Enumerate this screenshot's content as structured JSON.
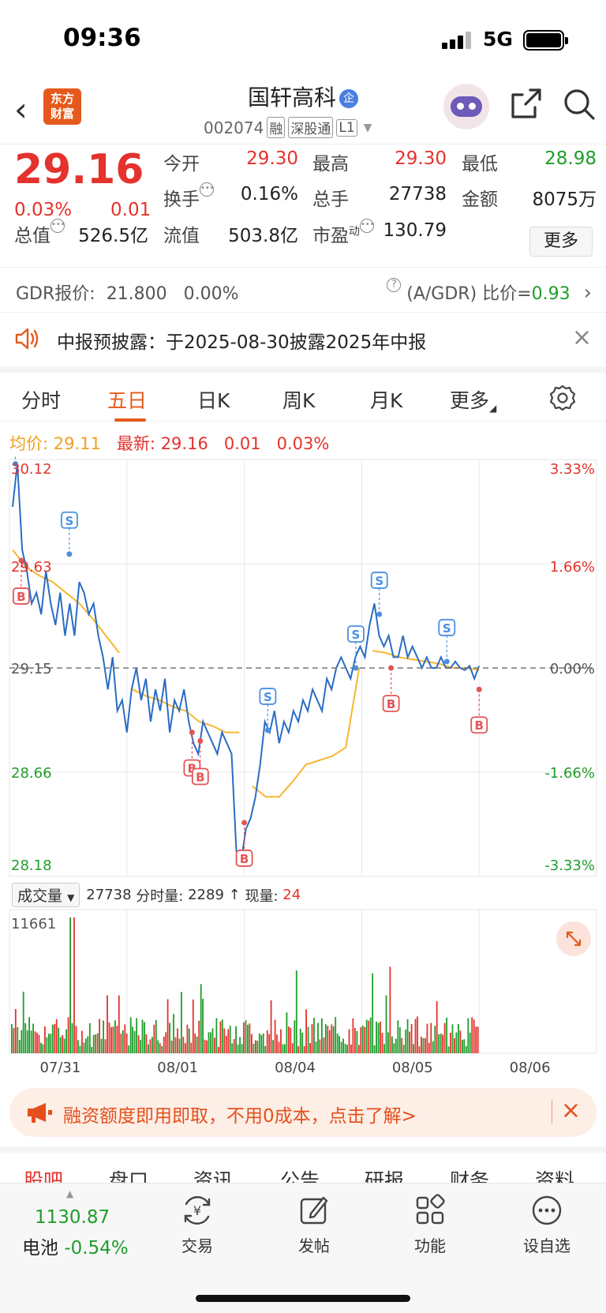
{
  "status_bar": {
    "time": "09:36",
    "network": "5G"
  },
  "header": {
    "logo_line1": "东方",
    "logo_line2": "财富",
    "stock_name": "国轩高科",
    "name_badge": "企",
    "code": "002074",
    "tags": [
      "融",
      "深股通",
      "L1"
    ]
  },
  "quote": {
    "price": "29.16",
    "change_pct": "0.03%",
    "change": "0.01",
    "open_label": "今开",
    "open": "29.30",
    "high_label": "最高",
    "high": "29.30",
    "low_label": "最低",
    "low": "28.98",
    "turnover_label": "换手",
    "turnover": "0.16%",
    "volume_label": "总手",
    "volume": "27738",
    "amount_label": "金额",
    "amount": "8075万",
    "mktcap_label": "总值",
    "mktcap": "526.5亿",
    "float_label": "流值",
    "float_cap": "503.8亿",
    "pe_label": "市盈",
    "pe_sup": "动",
    "pe": "130.79",
    "more": "更多"
  },
  "gdr": {
    "label": "GDR报价:",
    "price": "21.800",
    "pct": "0.00%",
    "ratio_label": "(A/GDR) 比价=",
    "ratio": "0.93"
  },
  "notice": {
    "text": "中报预披露：于2025-08-30披露2025年中报"
  },
  "tabs": [
    "分时",
    "五日",
    "日K",
    "周K",
    "月K",
    "更多"
  ],
  "avg_bar": {
    "avg_label": "均价:",
    "avg": "29.11",
    "latest_label": "最新:",
    "latest": "29.16",
    "chg": "0.01",
    "pct": "0.03%"
  },
  "chart_data": {
    "type": "line",
    "title": "",
    "x": [
      "07/31",
      "08/01",
      "08/04",
      "08/05",
      "08/06"
    ],
    "ylim": [
      28.18,
      30.12
    ],
    "y_ticks": [
      "30.12",
      "29.63",
      "29.15",
      "28.66",
      "28.18"
    ],
    "pct_ticks": [
      "3.33%",
      "1.66%",
      "0.00%",
      "-1.66%",
      "-3.33%"
    ],
    "price_series": [
      29.9,
      30.1,
      29.7,
      29.6,
      29.45,
      29.5,
      29.4,
      29.6,
      29.45,
      29.35,
      29.5,
      29.3,
      29.45,
      29.3,
      29.55,
      29.5,
      29.4,
      29.45,
      29.3,
      29.2,
      29.05,
      29.2,
      28.95,
      29.0,
      28.85,
      29.05,
      29.15,
      29.0,
      29.1,
      28.9,
      29.05,
      28.95,
      29.1,
      28.85,
      29.0,
      28.95,
      29.05,
      28.9,
      28.8,
      28.75,
      28.9,
      28.85,
      28.8,
      28.75,
      28.85,
      28.8,
      28.75,
      28.3,
      28.25,
      28.4,
      28.45,
      28.55,
      28.7,
      28.9,
      28.85,
      28.95,
      28.8,
      28.9,
      28.85,
      28.95,
      28.9,
      29.0,
      28.95,
      29.05,
      29.0,
      28.95,
      29.1,
      29.05,
      29.15,
      29.2,
      29.15,
      29.1,
      29.2,
      29.25,
      29.2,
      29.35,
      29.45,
      29.3,
      29.25,
      29.3,
      29.2,
      29.2,
      29.3,
      29.2,
      29.25,
      29.2,
      29.15,
      29.2,
      29.15,
      29.15,
      29.2,
      29.15,
      29.15,
      29.18,
      29.15,
      29.14,
      29.16,
      29.1,
      29.16
    ],
    "avg_series": [
      29.7,
      29.62,
      29.58,
      29.55,
      29.5,
      29.45,
      29.38,
      29.3,
      29.22,
      29.05,
      29.02,
      29.0,
      28.97,
      28.95,
      28.9,
      28.88,
      28.85,
      28.85,
      28.6,
      28.55,
      28.55,
      28.62,
      28.7,
      28.72,
      28.74,
      28.78,
      29.15,
      29.23,
      29.22,
      29.2,
      29.19,
      29.18,
      29.17,
      29.15,
      29.15,
      29.14
    ],
    "markers": [
      {
        "label": "S",
        "x": 0.01,
        "y": 30.1
      },
      {
        "label": "B",
        "x": 0.02,
        "y": 29.65
      },
      {
        "label": "S",
        "x": 0.102,
        "y": 29.68
      },
      {
        "label": "B",
        "x": 0.311,
        "y": 28.85
      },
      {
        "label": "B",
        "x": 0.325,
        "y": 28.81
      },
      {
        "label": "B",
        "x": 0.4,
        "y": 28.43
      },
      {
        "label": "S",
        "x": 0.44,
        "y": 28.86
      },
      {
        "label": "S",
        "x": 0.59,
        "y": 29.15
      },
      {
        "label": "S",
        "x": 0.63,
        "y": 29.4
      },
      {
        "label": "B",
        "x": 0.65,
        "y": 29.15
      },
      {
        "label": "S",
        "x": 0.745,
        "y": 29.18
      },
      {
        "label": "B",
        "x": 0.8,
        "y": 29.05
      }
    ],
    "volume_max": "11661",
    "volume_total": "27738",
    "volume_label": "成交量",
    "minute_vol_label": "分时量:",
    "minute_vol": "2289",
    "now_vol_label": "现量:",
    "now_vol": "24"
  },
  "promo": {
    "text": "融资额度即用即取，不用0成本，点击了解>"
  },
  "sub_tabs": [
    "股吧",
    "盘口",
    "资讯",
    "公告",
    "研报",
    "财务",
    "资料"
  ],
  "bottom_bar": {
    "index_value": "1130.87",
    "index_name": "电池",
    "index_pct": "-0.54%",
    "items": [
      "交易",
      "发帖",
      "功能",
      "设自选"
    ]
  },
  "colors": {
    "up": "#e4322c",
    "down": "#1f9d2a",
    "accent": "#e55a1c",
    "price_line": "#2a6cc4",
    "avg_line": "#f5b731"
  }
}
